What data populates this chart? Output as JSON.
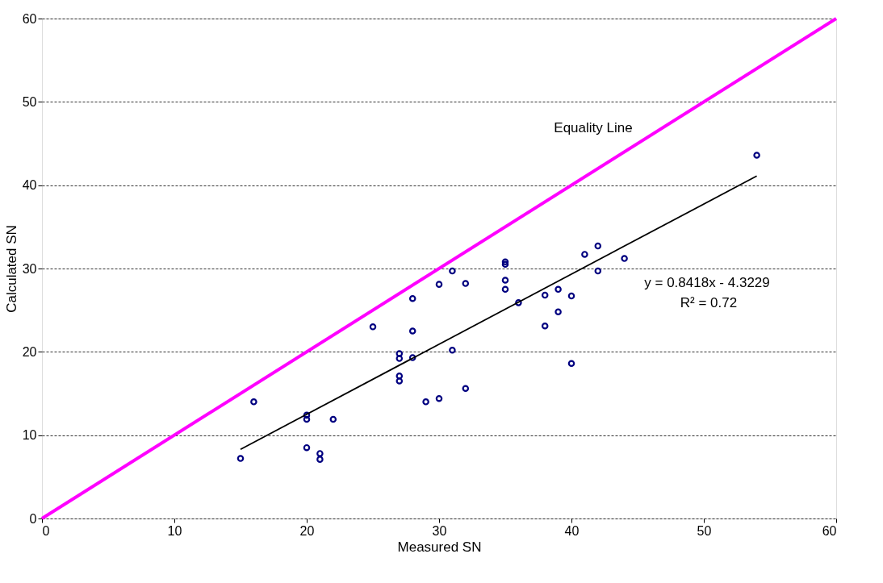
{
  "chart_data": {
    "type": "scatter",
    "xlabel": "Measured SN",
    "ylabel": "Calculated SN",
    "xlim": [
      0,
      60
    ],
    "ylim": [
      0,
      60
    ],
    "xticks": [
      0,
      10,
      20,
      30,
      40,
      50,
      60
    ],
    "yticks": [
      0,
      10,
      20,
      30,
      40,
      50,
      60
    ],
    "grid": "y",
    "series": [
      {
        "marker": "circle",
        "color": "#000080",
        "x": [
          15,
          16,
          20,
          20,
          20,
          21,
          21,
          22,
          25,
          27,
          27,
          27,
          27,
          28,
          28,
          28,
          29,
          30,
          30,
          31,
          31,
          32,
          32,
          35,
          35,
          35,
          35,
          36,
          38,
          38,
          39,
          39,
          40,
          40,
          41,
          42,
          42,
          44,
          54
        ],
        "values": [
          7.2,
          14,
          12.4,
          11.9,
          8.5,
          7.8,
          7.1,
          11.9,
          23,
          19.8,
          19.2,
          17.1,
          16.5,
          26.4,
          22.5,
          19.3,
          14,
          28.1,
          14.4,
          29.7,
          20.2,
          28.2,
          15.6,
          30.8,
          30.5,
          28.6,
          27.5,
          25.9,
          26.8,
          23.1,
          27.5,
          24.8,
          26.7,
          18.6,
          31.7,
          32.7,
          29.7,
          31.2,
          43.6
        ]
      },
      {
        "type": "line",
        "marker": "none",
        "color": "#ff00ff",
        "x": [
          0,
          60
        ],
        "values": [
          0,
          60
        ]
      },
      {
        "type": "line",
        "marker": "none",
        "color": "#000000",
        "x": [
          15,
          54
        ],
        "values": [
          8.3,
          41.1
        ]
      }
    ],
    "annotations": [
      "Equality Line",
      "y = 0.8418x - 4.3229",
      "R² = 0.72"
    ]
  }
}
